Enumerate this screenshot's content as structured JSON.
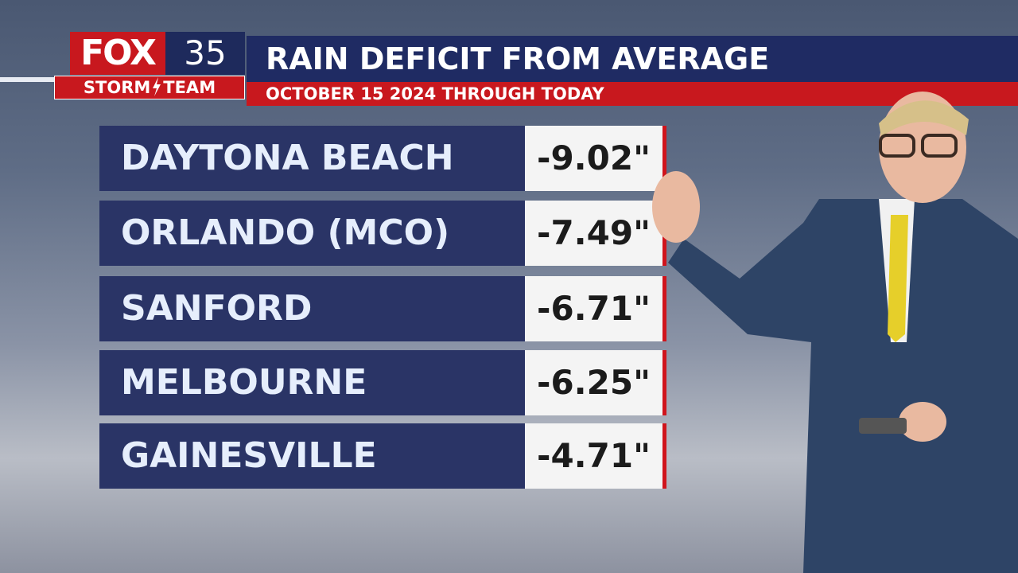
{
  "header": {
    "logo": {
      "brand": "FOX",
      "number": "35",
      "team_left": "STORM",
      "team_right": "TEAM"
    },
    "title": "RAIN DEFICIT FROM AVERAGE",
    "subtitle": "OCTOBER 15 2024 THROUGH TODAY"
  },
  "table": {
    "rows": [
      {
        "location": "DAYTONA BEACH",
        "deficit": "-9.02\""
      },
      {
        "location": "ORLANDO (MCO)",
        "deficit": "-7.49\""
      },
      {
        "location": "SANFORD",
        "deficit": "-6.71\""
      },
      {
        "location": "MELBOURNE",
        "deficit": "-6.25\""
      },
      {
        "location": "GAINESVILLE",
        "deficit": "-4.71\""
      }
    ]
  }
}
